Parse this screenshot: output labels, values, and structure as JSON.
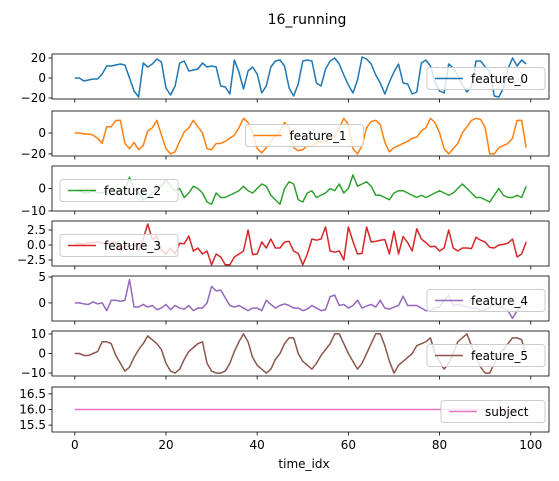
{
  "chart_data": {
    "type": "line",
    "title": "16_running",
    "xlabel": "time_idx",
    "x": [
      0,
      1,
      2,
      3,
      4,
      5,
      6,
      7,
      8,
      9,
      10,
      11,
      12,
      13,
      14,
      15,
      16,
      17,
      18,
      19,
      20,
      21,
      22,
      23,
      24,
      25,
      26,
      27,
      28,
      29,
      30,
      31,
      32,
      33,
      34,
      35,
      36,
      37,
      38,
      39,
      40,
      41,
      42,
      43,
      44,
      45,
      46,
      47,
      48,
      49,
      50,
      51,
      52,
      53,
      54,
      55,
      56,
      57,
      58,
      59,
      60,
      61,
      62,
      63,
      64,
      65,
      66,
      67,
      68,
      69,
      70,
      71,
      72,
      73,
      74,
      75,
      76,
      77,
      78,
      79,
      80,
      81,
      82,
      83,
      84,
      85,
      86,
      87,
      88,
      89,
      90,
      91,
      92,
      93,
      94,
      95,
      96,
      97,
      98,
      99
    ],
    "xlim": [
      -5,
      104
    ],
    "xticks": [
      0,
      20,
      40,
      60,
      80,
      100
    ],
    "xtick_labels": [
      "0",
      "20",
      "40",
      "60",
      "80",
      "100"
    ],
    "panels": [
      {
        "name": "feature_0",
        "color": "#1f77b4",
        "legend": "right",
        "ylim": [
          -21,
          24
        ],
        "yticks": [
          -20,
          0,
          20
        ],
        "ytick_labels": [
          "−20",
          "0",
          "20"
        ],
        "values": [
          0,
          0,
          -3,
          -2,
          -1,
          -1,
          4,
          12,
          12,
          13,
          14,
          13,
          0,
          -13,
          -19,
          15,
          11,
          14,
          19,
          16,
          -10,
          -17,
          -8,
          15,
          17,
          7,
          8,
          9,
          15,
          11,
          12,
          11,
          -8,
          -9,
          -16,
          18,
          6,
          -11,
          7,
          11,
          4,
          -15,
          -8,
          11,
          17,
          18,
          12,
          -10,
          -18,
          -6,
          17,
          18,
          17,
          -5,
          -8,
          9,
          17,
          20,
          14,
          3,
          -7,
          -15,
          -2,
          21,
          19,
          14,
          3,
          -5,
          -16,
          -4,
          6,
          14,
          -5,
          -6,
          -16,
          -14,
          15,
          18,
          12,
          -4,
          -13,
          -15,
          14,
          10,
          3,
          -7,
          -14,
          -8,
          17,
          17,
          11,
          7,
          -18,
          -19,
          -10,
          9,
          20,
          12,
          18,
          14
        ]
      },
      {
        "name": "feature_1",
        "color": "#ff7f0e",
        "legend": "center",
        "ylim": [
          -22,
          21
        ],
        "yticks": [
          -20,
          0
        ],
        "ytick_labels": [
          "−20",
          "0"
        ],
        "values": [
          0,
          0,
          -1,
          -1,
          -2,
          -5,
          -10,
          6,
          6,
          12,
          12,
          -10,
          -15,
          -9,
          -16,
          -12,
          2,
          5,
          12,
          -2,
          -15,
          -20,
          -18,
          -8,
          1,
          5,
          12,
          6,
          0,
          -15,
          -16,
          -10,
          -10,
          -8,
          -5,
          -2,
          5,
          14,
          10,
          0,
          -15,
          -19,
          -14,
          -8,
          -3,
          2,
          10,
          5,
          -14,
          -17,
          -16,
          -12,
          -13,
          -9,
          -8,
          -8,
          -5,
          -4,
          5,
          14,
          8,
          -15,
          -20,
          -12,
          5,
          11,
          12,
          8,
          -9,
          -18,
          -14,
          -12,
          -10,
          -8,
          -5,
          -4,
          2,
          5,
          14,
          10,
          0,
          -15,
          -20,
          -15,
          -10,
          0,
          6,
          12,
          14,
          13,
          5,
          -20,
          -20,
          -14,
          -12,
          -10,
          -5,
          12,
          12,
          -14
        ]
      },
      {
        "name": "feature_2",
        "color": "#2ca02c",
        "legend": "left",
        "ylim": [
          -10,
          10
        ],
        "yticks": [
          -10,
          0
        ],
        "ytick_labels": [
          "−10",
          "0"
        ],
        "values": [
          -1,
          -1,
          -2,
          -2,
          -1,
          -2,
          -2,
          -1,
          0,
          -1,
          -1,
          -1,
          5,
          0,
          -2,
          -5,
          -4,
          -2,
          0,
          1,
          4,
          1,
          -1,
          0,
          -4,
          -2,
          1,
          0,
          -2,
          -6,
          -7,
          -2,
          -4,
          -4,
          -3,
          -2,
          -1,
          1,
          -1,
          -2,
          0,
          2,
          1,
          -3,
          -5,
          -7,
          0,
          3,
          2,
          -5,
          -6,
          -2,
          -1,
          -4,
          -3,
          -2,
          0,
          -1,
          2,
          -2,
          0,
          6,
          1,
          2,
          3,
          1,
          -3,
          -3,
          -4,
          -5,
          -2,
          -1,
          -1,
          -2,
          -3,
          -4,
          -3,
          -4,
          -3,
          -2,
          -1,
          -2,
          -3,
          -2,
          0,
          2,
          0,
          -2,
          -4,
          -4,
          -5,
          -6,
          -3,
          0,
          -3,
          -4,
          -4,
          -3,
          -4,
          1
        ]
      },
      {
        "name": "feature_3",
        "color": "#d62728",
        "legend": "left",
        "ylim": [
          -3.5,
          4.0
        ],
        "yticks": [
          -2.5,
          0.0,
          2.5
        ],
        "ytick_labels": [
          "−2.5",
          "0.0",
          "2.5"
        ],
        "values": [
          0.4,
          0.2,
          0.2,
          0.4,
          0.4,
          0.5,
          0.3,
          0.2,
          0.4,
          0.5,
          -1.0,
          0.0,
          -0.3,
          0.3,
          -1.0,
          1.0,
          3.5,
          0.9,
          1.5,
          -0.9,
          -1.5,
          -0.5,
          -1.5,
          0.3,
          0.2,
          1.5,
          -1.0,
          -0.5,
          -1.5,
          -1.0,
          -3.3,
          -1.5,
          -2.0,
          -3.3,
          -3.3,
          -2.0,
          -1.5,
          -1.0,
          2.5,
          -1.6,
          -1.5,
          0.5,
          -0.5,
          1.0,
          -0.5,
          -0.5,
          0.5,
          0.6,
          -1.0,
          -1.4,
          -3.3,
          -1.5,
          1.0,
          0.8,
          1.0,
          3.0,
          -1.0,
          -1.2,
          -1.0,
          -2.5,
          3.0,
          0.6,
          -1.5,
          -1.4,
          3.0,
          0.5,
          0.6,
          0.8,
          0.9,
          -1.5,
          2.3,
          -1.5,
          1.4,
          0.4,
          -1.0,
          2.7,
          1.0,
          0.4,
          -0.3,
          -0.2,
          -1.0,
          -0.5,
          2.5,
          -0.5,
          -1.0,
          -0.5,
          -0.5,
          -0.6,
          1.3,
          0.8,
          0.5,
          -0.4,
          -0.5,
          0.0,
          0.1,
          0.3,
          1.0,
          -2.0,
          -1.5,
          0.5
        ]
      },
      {
        "name": "feature_4",
        "color": "#9467bd",
        "legend": "right",
        "ylim": [
          -3.5,
          5.2
        ],
        "yticks": [
          0,
          5
        ],
        "ytick_labels": [
          "0",
          "5"
        ],
        "values": [
          0.0,
          0.0,
          -0.2,
          -0.3,
          0.2,
          -0.2,
          0.0,
          -1.5,
          0.5,
          0.5,
          0.3,
          0.5,
          4.5,
          -0.8,
          -0.8,
          -0.3,
          -0.8,
          -0.5,
          -1.3,
          -1.0,
          -0.3,
          -1.3,
          -0.5,
          -1.0,
          -1.2,
          -0.5,
          -1.5,
          -1.0,
          -1.0,
          0.0,
          3.2,
          2.3,
          2.5,
          1.0,
          -0.5,
          -0.8,
          -0.5,
          -1.0,
          -1.5,
          -1.0,
          -1.0,
          -1.5,
          0.5,
          -0.3,
          -1.0,
          -0.5,
          -0.2,
          -0.5,
          -1.0,
          -1.0,
          -1.5,
          -1.2,
          -0.5,
          -1.0,
          -1.5,
          -1.3,
          1.2,
          1.5,
          -0.5,
          -0.3,
          -1.0,
          -0.5,
          0.5,
          -1.0,
          -0.6,
          -0.3,
          -0.8,
          0.5,
          -1.0,
          -1.2,
          -0.8,
          -0.5,
          1.3,
          -0.5,
          -0.5,
          -0.5,
          -1.0,
          -1.5,
          -1.5,
          -1.0,
          -0.8,
          0.5,
          1.5,
          -0.5,
          -0.3,
          -0.5,
          -0.8,
          -1.0,
          -1.0,
          -1.5,
          -1.3,
          -1.0,
          0.0,
          -0.5,
          -1.0,
          -1.5,
          -3.0,
          -1.5,
          -0.5,
          0.0
        ]
      },
      {
        "name": "feature_5",
        "color": "#8c564b",
        "legend": "right",
        "ylim": [
          -11.5,
          11.5
        ],
        "yticks": [
          -10,
          0,
          10
        ],
        "ytick_labels": [
          "−10",
          "0",
          "10"
        ],
        "values": [
          0,
          0,
          -1,
          -1,
          0,
          1,
          6,
          6,
          5,
          -1,
          -5,
          -9,
          -7,
          -2,
          2,
          5,
          9,
          7,
          5,
          2,
          -5,
          -9,
          -10,
          -8,
          -3,
          1,
          3,
          5,
          6,
          -5,
          -9,
          -10,
          -10,
          -9,
          -5,
          1,
          6,
          10,
          6,
          -2,
          -6,
          -8,
          -10,
          -8,
          -3,
          0,
          5,
          8,
          8,
          0,
          -4,
          -6,
          -8,
          -5,
          -1,
          2,
          5,
          10,
          10,
          5,
          0,
          -4,
          -8,
          -5,
          0,
          5,
          10,
          10,
          4,
          -4,
          -10,
          -6,
          -4,
          -2,
          0,
          4,
          5,
          6,
          8,
          0,
          -4,
          -8,
          -5,
          0,
          6,
          8,
          10,
          4,
          -2,
          -7,
          -10,
          -10,
          -5,
          0,
          2,
          5,
          8,
          8,
          7,
          -1
        ]
      },
      {
        "name": "subject",
        "color": "#e377c2",
        "legend": "right",
        "ylim": [
          15.28,
          16.72
        ],
        "yticks": [
          15.5,
          16.0,
          16.5
        ],
        "ytick_labels": [
          "15.5",
          "16.0",
          "16.5"
        ],
        "values": [
          16,
          16,
          16,
          16,
          16,
          16,
          16,
          16,
          16,
          16,
          16,
          16,
          16,
          16,
          16,
          16,
          16,
          16,
          16,
          16,
          16,
          16,
          16,
          16,
          16,
          16,
          16,
          16,
          16,
          16,
          16,
          16,
          16,
          16,
          16,
          16,
          16,
          16,
          16,
          16,
          16,
          16,
          16,
          16,
          16,
          16,
          16,
          16,
          16,
          16,
          16,
          16,
          16,
          16,
          16,
          16,
          16,
          16,
          16,
          16,
          16,
          16,
          16,
          16,
          16,
          16,
          16,
          16,
          16,
          16,
          16,
          16,
          16,
          16,
          16,
          16,
          16,
          16,
          16,
          16,
          16,
          16,
          16,
          16,
          16,
          16,
          16,
          16,
          16,
          16,
          16,
          16,
          16,
          16,
          16,
          16,
          16,
          16,
          16,
          16
        ]
      }
    ]
  }
}
